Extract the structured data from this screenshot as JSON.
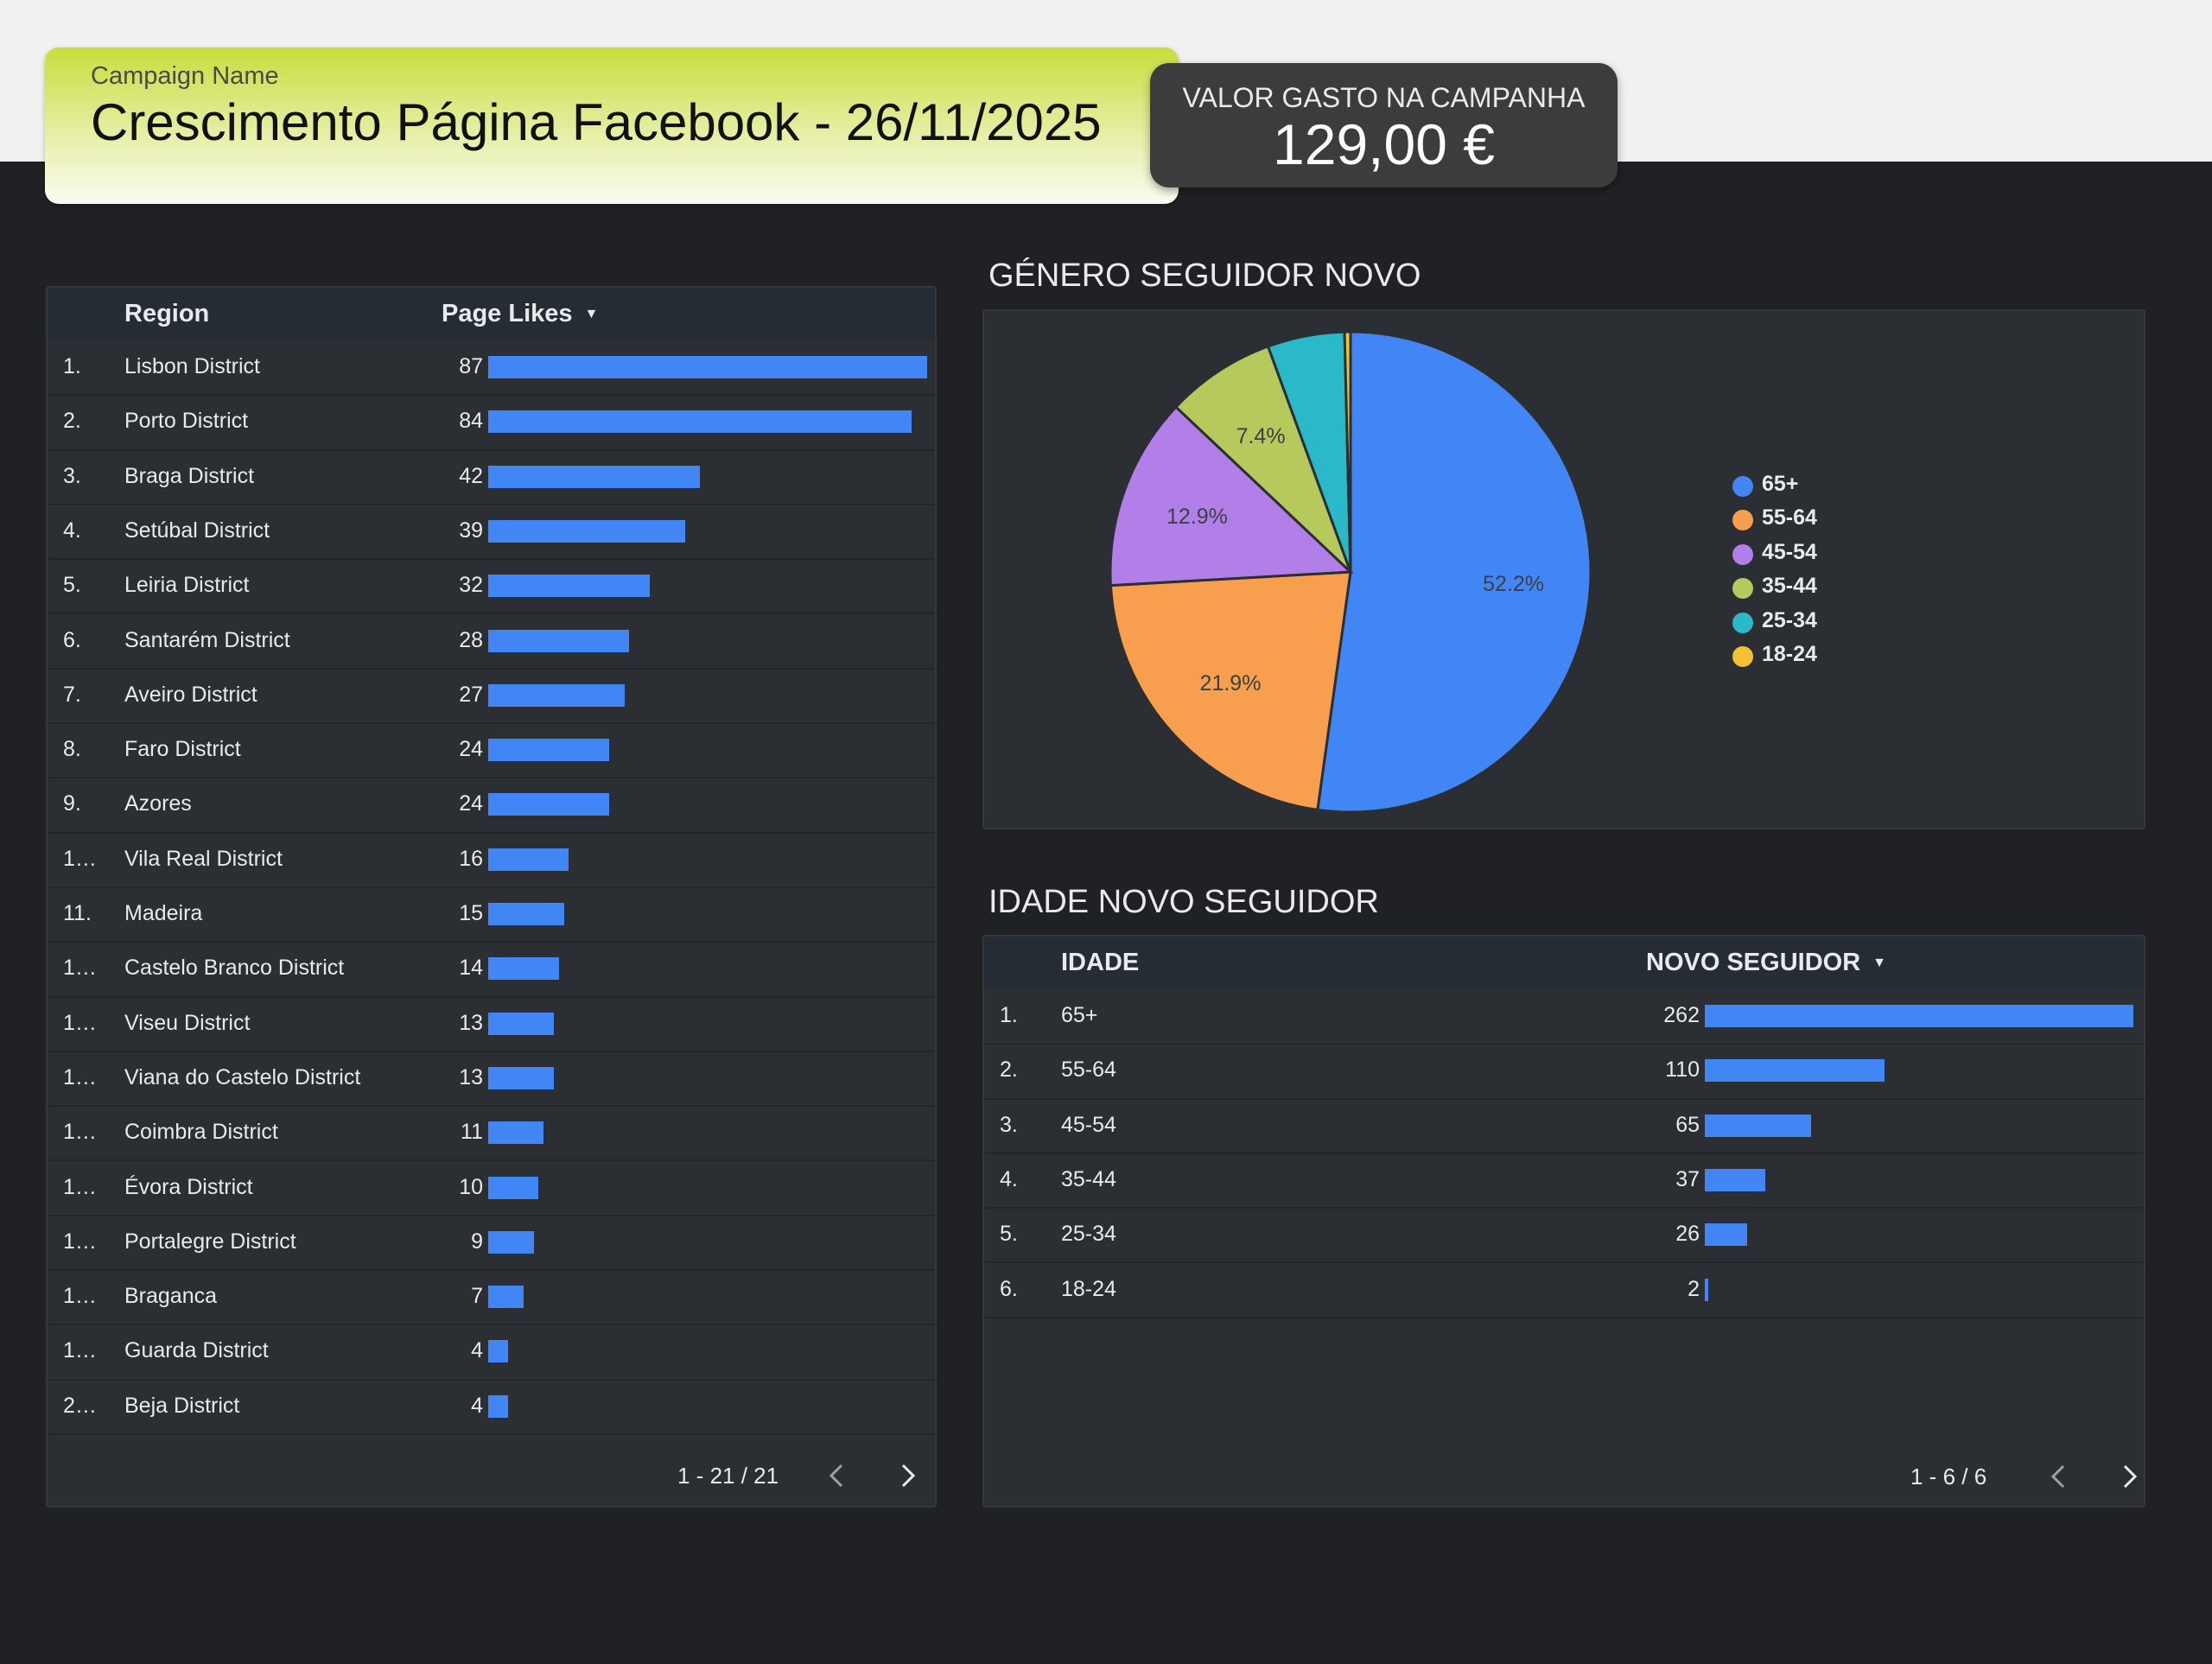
{
  "header": {
    "campaign_label": "Campaign Name",
    "campaign_title": "Crescimento Página Facebook - 26/11/2025",
    "spend_label": "VALOR GASTO NA CAMPANHA",
    "spend_value": "129,00 €"
  },
  "region_table": {
    "col_region": "Region",
    "col_likes": "Page Likes",
    "sort_icon": "▼",
    "rows": [
      {
        "idx": "1.",
        "name": "Lisbon District",
        "value": 87
      },
      {
        "idx": "2.",
        "name": "Porto District",
        "value": 84
      },
      {
        "idx": "3.",
        "name": "Braga District",
        "value": 42
      },
      {
        "idx": "4.",
        "name": "Setúbal District",
        "value": 39
      },
      {
        "idx": "5.",
        "name": "Leiria District",
        "value": 32
      },
      {
        "idx": "6.",
        "name": "Santarém District",
        "value": 28
      },
      {
        "idx": "7.",
        "name": "Aveiro District",
        "value": 27
      },
      {
        "idx": "8.",
        "name": "Faro District",
        "value": 24
      },
      {
        "idx": "9.",
        "name": "Azores",
        "value": 24
      },
      {
        "idx": "1…",
        "name": "Vila Real District",
        "value": 16
      },
      {
        "idx": "11.",
        "name": "Madeira",
        "value": 15
      },
      {
        "idx": "1…",
        "name": "Castelo Branco District",
        "value": 14
      },
      {
        "idx": "1…",
        "name": "Viseu District",
        "value": 13
      },
      {
        "idx": "1…",
        "name": "Viana do Castelo District",
        "value": 13
      },
      {
        "idx": "1…",
        "name": "Coimbra District",
        "value": 11
      },
      {
        "idx": "1…",
        "name": "Évora District",
        "value": 10
      },
      {
        "idx": "1…",
        "name": "Portalegre District",
        "value": 9
      },
      {
        "idx": "1…",
        "name": "Braganca",
        "value": 7
      },
      {
        "idx": "1…",
        "name": "Guarda District",
        "value": 4
      },
      {
        "idx": "2…",
        "name": "Beja District",
        "value": 4
      }
    ],
    "pager_text": "1 - 21 / 21",
    "prev_icon": "chevron-left-icon",
    "next_icon": "chevron-right-icon"
  },
  "gender_section": {
    "title": "GÉNERO SEGUIDOR NOVO"
  },
  "age_section": {
    "title": "IDADE NOVO SEGUIDOR",
    "col_age": "IDADE",
    "col_new": "NOVO SEGUIDOR",
    "sort_icon": "▼",
    "rows": [
      {
        "idx": "1.",
        "name": "65+",
        "value": 262
      },
      {
        "idx": "2.",
        "name": "55-64",
        "value": 110
      },
      {
        "idx": "3.",
        "name": "45-54",
        "value": 65
      },
      {
        "idx": "4.",
        "name": "35-44",
        "value": 37
      },
      {
        "idx": "5.",
        "name": "25-34",
        "value": 26
      },
      {
        "idx": "6.",
        "name": "18-24",
        "value": 2
      }
    ],
    "pager_text": "1 - 6 / 6"
  },
  "chart_data": {
    "type": "pie",
    "title": "",
    "categories": [
      "65+",
      "55-64",
      "45-54",
      "35-44",
      "25-34",
      "18-24"
    ],
    "values": [
      262,
      110,
      65,
      37,
      26,
      2
    ],
    "labels": [
      "52.2%",
      "21.9%",
      "12.9%",
      "7.4%",
      "",
      ""
    ],
    "colors": [
      "#4285f4",
      "#f79e4f",
      "#b27ee8",
      "#b5c95c",
      "#2bb8c9",
      "#f2c232"
    ],
    "legend_position": "right"
  },
  "colors": {
    "bar": "#4285f4",
    "background": "#202124",
    "panel": "#2b2f33"
  }
}
